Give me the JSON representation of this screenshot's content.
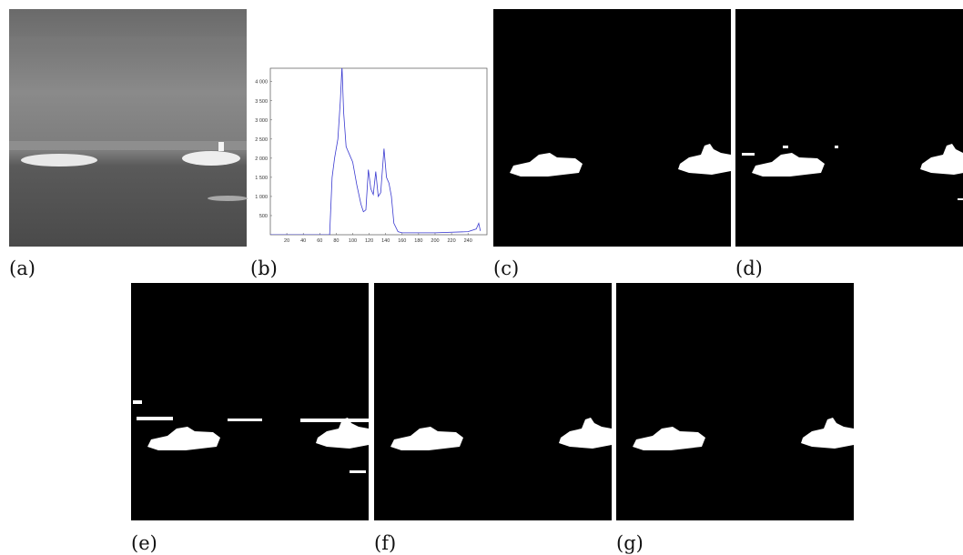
{
  "panels": [
    {
      "label": "(a)"
    },
    {
      "label": "(b)"
    },
    {
      "label": "(c)"
    },
    {
      "label": "(d)"
    },
    {
      "label": "(e)"
    },
    {
      "label": "(f)"
    },
    {
      "label": "(g)"
    }
  ],
  "chart_data": {
    "type": "line",
    "x": [
      0,
      70,
      72,
      75,
      78,
      82,
      85,
      87,
      89,
      92,
      96,
      100,
      105,
      110,
      113,
      116,
      119,
      122,
      125,
      128,
      131,
      134,
      138,
      141,
      144,
      147,
      150,
      155,
      160,
      200,
      240,
      250,
      253,
      255
    ],
    "series": [
      {
        "color": "#3a3ad0",
        "values": [
          0,
          0,
          0,
          1500,
          2000,
          2500,
          3500,
          4400,
          3200,
          2300,
          2100,
          1900,
          1300,
          800,
          600,
          650,
          1700,
          1200,
          1050,
          1650,
          1000,
          1100,
          2250,
          1500,
          1350,
          1000,
          300,
          80,
          50,
          50,
          80,
          150,
          300,
          100
        ]
      }
    ],
    "xlim": [
      0,
      263
    ],
    "ylim": [
      0,
      4350
    ],
    "xticks": [
      20,
      40,
      60,
      80,
      100,
      120,
      140,
      160,
      180,
      200,
      220,
      240
    ],
    "yticks": [
      500,
      {
        "value": 1000,
        "label": "1 000"
      },
      {
        "value": 1500,
        "label": "1 500"
      },
      {
        "value": 2000,
        "label": "2 000"
      },
      {
        "value": 2500,
        "label": "2 500"
      },
      {
        "value": 3000,
        "label": "3 000"
      },
      {
        "value": 3500,
        "label": "3 500"
      },
      {
        "value": 4000,
        "label": "4 000"
      }
    ]
  }
}
